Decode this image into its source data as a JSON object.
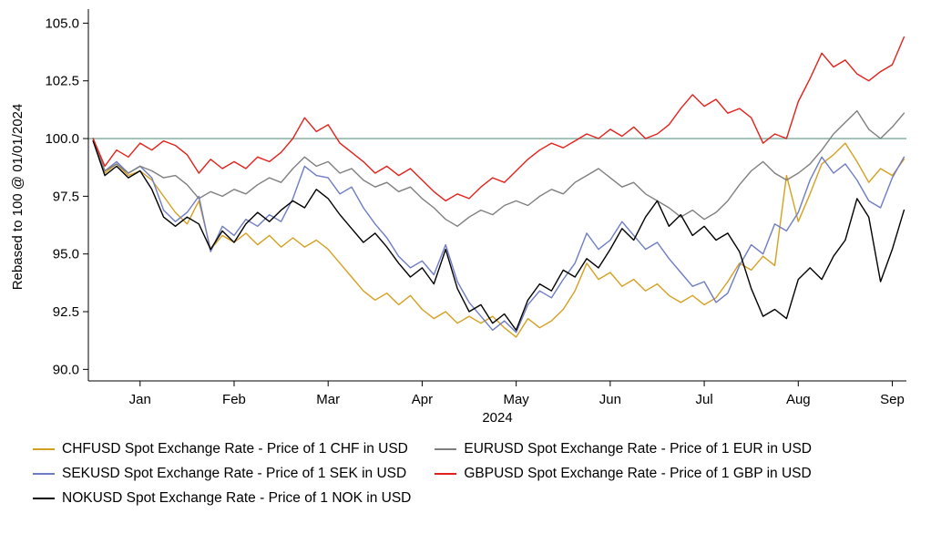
{
  "chart_data": {
    "type": "line",
    "ylabel": "Rebased to 100 @ 01/01/2024",
    "xlabel": "2024",
    "ylim": [
      89.5,
      105.45
    ],
    "yticks": [
      90.0,
      92.5,
      95.0,
      97.5,
      100.0,
      102.5,
      105.0
    ],
    "ytick_labels": [
      "90.0",
      "92.5",
      "95.0",
      "97.5",
      "100.0",
      "102.5",
      "105.0"
    ],
    "xlim_months": [
      -0.05,
      8.65
    ],
    "xticks_months": [
      0.5,
      1.5,
      2.5,
      3.5,
      4.5,
      5.5,
      6.5,
      7.5,
      8.5
    ],
    "xtick_labels": [
      "Jan",
      "Feb",
      "Mar",
      "Apr",
      "May",
      "Jun",
      "Jul",
      "Aug",
      "Sep"
    ],
    "grid": false,
    "legend_position": "bottom",
    "reference_line": {
      "y": 100.0,
      "color": "#7ca99b"
    },
    "x_start_month": 0,
    "x_step_months": 0.125,
    "legend_order": [
      0,
      1,
      3,
      2,
      4
    ],
    "series": [
      {
        "name": "CHFUSD",
        "label": "CHFUSD Spot Exchange Rate - Price of 1 CHF in USD",
        "color": "#d5a021",
        "values": [
          100.0,
          98.5,
          98.9,
          98.4,
          98.6,
          98.2,
          97.5,
          96.8,
          96.3,
          97.3,
          95.2,
          95.8,
          95.5,
          95.9,
          95.4,
          95.8,
          95.3,
          95.7,
          95.3,
          95.6,
          95.2,
          94.6,
          94.0,
          93.4,
          93.0,
          93.3,
          92.8,
          93.2,
          92.6,
          92.2,
          92.5,
          92.0,
          92.3,
          92.0,
          92.3,
          91.8,
          91.4,
          92.2,
          91.8,
          92.1,
          92.6,
          93.4,
          94.6,
          93.9,
          94.2,
          93.6,
          93.9,
          93.4,
          93.7,
          93.2,
          92.9,
          93.2,
          92.8,
          93.1,
          93.8,
          94.6,
          94.3,
          94.9,
          94.5,
          98.4,
          96.4,
          97.6,
          98.9,
          99.3,
          99.8,
          99.0,
          98.1,
          98.7,
          98.4,
          99.1
        ]
      },
      {
        "name": "SEKUSD",
        "label": "SEKUSD Spot Exchange Rate - Price of 1 SEK in USD",
        "color": "#6e7cc3",
        "values": [
          100.0,
          98.6,
          99.0,
          98.5,
          98.8,
          98.3,
          96.9,
          96.4,
          96.8,
          97.5,
          95.1,
          96.2,
          95.8,
          96.5,
          96.2,
          96.7,
          96.4,
          97.4,
          98.8,
          98.4,
          98.3,
          97.6,
          97.9,
          97.0,
          96.3,
          95.7,
          94.9,
          94.4,
          94.7,
          94.1,
          95.4,
          93.8,
          92.9,
          92.3,
          91.7,
          92.1,
          91.6,
          92.8,
          93.4,
          93.1,
          93.9,
          94.6,
          95.9,
          95.2,
          95.6,
          96.4,
          95.8,
          95.2,
          95.5,
          94.8,
          94.2,
          93.6,
          93.8,
          92.9,
          93.3,
          94.5,
          95.4,
          95.0,
          96.3,
          96.0,
          96.8,
          98.2,
          99.2,
          98.5,
          98.9,
          98.2,
          97.3,
          97.0,
          98.3,
          99.2
        ]
      },
      {
        "name": "EURUSD",
        "label": "EURUSD Spot Exchange Rate - Price of 1 EUR in USD",
        "color": "#7f7f7f",
        "values": [
          100.0,
          98.6,
          98.9,
          98.5,
          98.8,
          98.6,
          98.3,
          98.4,
          98.0,
          97.4,
          97.7,
          97.5,
          97.8,
          97.6,
          98.0,
          98.3,
          98.1,
          98.7,
          99.2,
          98.8,
          99.0,
          98.5,
          98.7,
          98.2,
          97.9,
          98.1,
          97.7,
          97.9,
          97.4,
          97.0,
          96.5,
          96.2,
          96.6,
          96.9,
          96.7,
          97.1,
          97.3,
          97.1,
          97.5,
          97.8,
          97.6,
          98.1,
          98.4,
          98.7,
          98.3,
          97.9,
          98.1,
          97.6,
          97.3,
          97.0,
          96.6,
          96.9,
          96.5,
          96.8,
          97.3,
          98.0,
          98.6,
          99.0,
          98.5,
          98.2,
          98.5,
          98.9,
          99.5,
          100.2,
          100.7,
          101.2,
          100.4,
          100.0,
          100.5,
          101.1
        ]
      },
      {
        "name": "NOKUSD",
        "label": "NOKUSD Spot Exchange Rate - Price of 1 NOK in USD",
        "color": "#000000",
        "values": [
          99.9,
          98.4,
          98.8,
          98.3,
          98.6,
          97.8,
          96.6,
          96.2,
          96.6,
          96.3,
          95.2,
          96.0,
          95.5,
          96.3,
          96.8,
          96.4,
          96.9,
          97.3,
          97.0,
          97.8,
          97.4,
          96.7,
          96.1,
          95.5,
          95.9,
          95.3,
          94.6,
          94.0,
          94.4,
          93.7,
          95.2,
          93.5,
          92.5,
          92.8,
          92.0,
          92.4,
          91.7,
          93.0,
          93.7,
          93.4,
          94.3,
          94.0,
          94.8,
          94.4,
          95.2,
          96.1,
          95.6,
          96.6,
          97.3,
          96.2,
          96.7,
          95.8,
          96.2,
          95.6,
          95.9,
          95.1,
          93.5,
          92.3,
          92.6,
          92.2,
          93.9,
          94.4,
          93.9,
          94.9,
          95.6,
          97.4,
          96.6,
          93.8,
          95.2,
          96.9
        ]
      },
      {
        "name": "GBPUSD",
        "label": "GBPUSD Spot Exchange Rate - Price of 1 GBP in USD",
        "color": "#e3211a",
        "values": [
          100.0,
          98.8,
          99.5,
          99.2,
          99.8,
          99.5,
          99.9,
          99.7,
          99.3,
          98.5,
          99.1,
          98.7,
          99.0,
          98.7,
          99.2,
          99.0,
          99.4,
          100.0,
          100.9,
          100.3,
          100.6,
          99.8,
          99.4,
          99.0,
          98.5,
          98.8,
          98.4,
          98.7,
          98.2,
          97.7,
          97.3,
          97.6,
          97.4,
          97.9,
          98.3,
          98.1,
          98.6,
          99.1,
          99.5,
          99.8,
          99.6,
          99.9,
          100.2,
          100.0,
          100.4,
          100.1,
          100.5,
          100.0,
          100.2,
          100.6,
          101.3,
          101.9,
          101.4,
          101.7,
          101.1,
          101.3,
          100.9,
          99.8,
          100.2,
          100.0,
          101.6,
          102.6,
          103.7,
          103.1,
          103.4,
          102.8,
          102.5,
          102.9,
          103.2,
          104.4
        ]
      }
    ]
  }
}
